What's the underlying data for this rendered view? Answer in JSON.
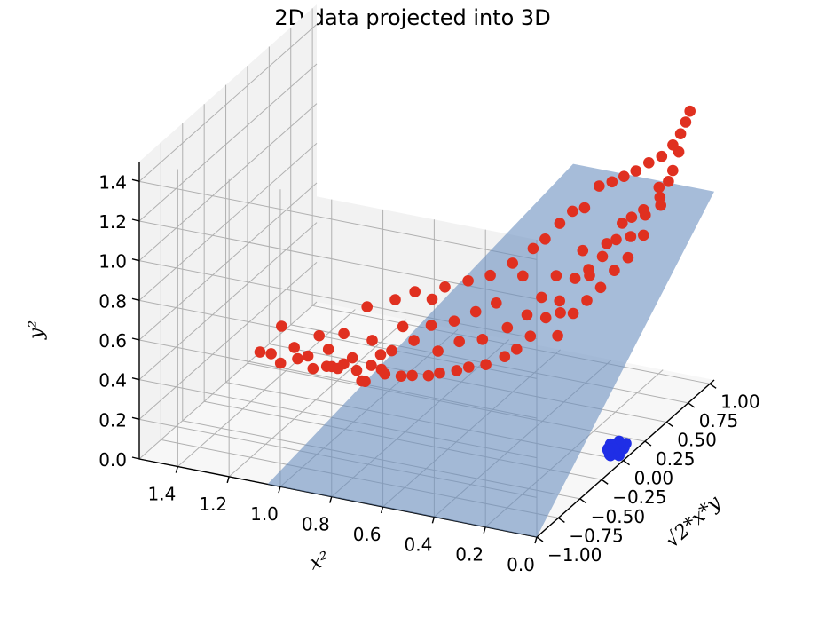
{
  "chart_data": {
    "type": "scatter",
    "dimensions": 3,
    "title": "2D data projected into 3D",
    "xlabel": "$x^2$",
    "ylabel": "$\\sqrt{2}*x*y$",
    "zlabel": "$y^2$",
    "xlabel_display": "x²",
    "ylabel_display": "√2*x*y",
    "zlabel_display": "y²",
    "xlim": [
      0.0,
      1.55
    ],
    "ylim": [
      -1.0,
      1.05
    ],
    "zlim": [
      0.0,
      1.5
    ],
    "x_ticks": [
      "0.0",
      "0.2",
      "0.4",
      "0.6",
      "0.8",
      "1.0",
      "1.2",
      "1.4"
    ],
    "y_ticks": [
      "−1.00",
      "−0.75",
      "−0.50",
      "−0.25",
      "0.00",
      "0.25",
      "0.50",
      "0.75",
      "1.00"
    ],
    "z_ticks": [
      "0.0",
      "0.2",
      "0.4",
      "0.6",
      "0.8",
      "1.0",
      "1.2",
      "1.4"
    ],
    "grid": true,
    "colors": {
      "outer": "#e03020",
      "inner": "#1f2ee6",
      "plane": "#6a8fbf"
    },
    "series": [
      {
        "color": "#e03020",
        "points": [
          [
            1.4,
            -0.05,
            0.21
          ],
          [
            1.38,
            0.02,
            0.18
          ],
          [
            1.33,
            -0.02,
            0.16
          ],
          [
            1.3,
            0.05,
            0.22
          ],
          [
            1.27,
            0.0,
            0.19
          ],
          [
            1.24,
            0.03,
            0.2
          ],
          [
            1.2,
            -0.03,
            0.17
          ],
          [
            1.17,
            0.06,
            0.24
          ],
          [
            1.14,
            0.01,
            0.18
          ],
          [
            1.1,
            -0.04,
            0.2
          ],
          [
            1.07,
            0.04,
            0.23
          ],
          [
            1.04,
            0.0,
            0.19
          ],
          [
            1.0,
            -0.06,
            0.17
          ],
          [
            0.97,
            0.07,
            0.26
          ],
          [
            0.95,
            0.02,
            0.21
          ],
          [
            1.36,
            0.08,
            0.3
          ],
          [
            1.22,
            0.1,
            0.28
          ],
          [
            1.12,
            0.09,
            0.32
          ],
          [
            1.02,
            0.12,
            0.3
          ],
          [
            0.98,
            -0.08,
            0.18
          ],
          [
            1.05,
            0.15,
            0.45
          ],
          [
            0.95,
            0.18,
            0.5
          ],
          [
            0.9,
            0.12,
            0.4
          ],
          [
            0.88,
            0.2,
            0.55
          ],
          [
            0.92,
            0.05,
            0.3
          ],
          [
            0.85,
            0.1,
            0.35
          ],
          [
            0.82,
            0.22,
            0.52
          ],
          [
            0.8,
            0.15,
            0.42
          ],
          [
            0.78,
            0.25,
            0.58
          ],
          [
            0.75,
            0.08,
            0.33
          ],
          [
            0.72,
            0.18,
            0.45
          ],
          [
            0.7,
            0.28,
            0.62
          ],
          [
            0.68,
            0.12,
            0.38
          ],
          [
            0.65,
            0.22,
            0.5
          ],
          [
            0.62,
            0.3,
            0.66
          ],
          [
            0.6,
            0.15,
            0.4
          ],
          [
            0.58,
            0.25,
            0.55
          ],
          [
            0.55,
            0.35,
            0.72
          ],
          [
            0.52,
            0.2,
            0.46
          ],
          [
            0.5,
            0.32,
            0.68
          ],
          [
            0.48,
            0.38,
            0.8
          ],
          [
            0.46,
            0.25,
            0.52
          ],
          [
            0.44,
            0.4,
            0.85
          ],
          [
            0.42,
            0.3,
            0.6
          ],
          [
            0.4,
            0.45,
            0.92
          ],
          [
            0.38,
            0.35,
            0.7
          ],
          [
            0.36,
            0.48,
            0.98
          ],
          [
            0.34,
            0.28,
            0.55
          ],
          [
            0.32,
            0.5,
            1.0
          ],
          [
            0.3,
            0.42,
            0.82
          ],
          [
            0.28,
            0.55,
            1.1
          ],
          [
            0.26,
            0.38,
            0.72
          ],
          [
            0.24,
            0.58,
            1.12
          ],
          [
            0.22,
            0.46,
            0.86
          ],
          [
            0.2,
            0.6,
            1.15
          ],
          [
            0.18,
            0.52,
            0.95
          ],
          [
            0.16,
            0.62,
            1.18
          ],
          [
            0.14,
            0.5,
            0.9
          ],
          [
            0.12,
            0.65,
            1.22
          ],
          [
            0.1,
            0.55,
            1.0
          ],
          [
            0.08,
            0.68,
            1.25
          ],
          [
            0.06,
            0.6,
            1.08
          ],
          [
            0.05,
            0.72,
            1.3
          ],
          [
            0.04,
            0.64,
            1.15
          ],
          [
            0.03,
            0.75,
            1.35
          ],
          [
            0.02,
            0.7,
            1.28
          ],
          [
            0.02,
            0.78,
            1.4
          ],
          [
            0.01,
            0.8,
            1.45
          ],
          [
            0.03,
            0.66,
            1.2
          ],
          [
            0.05,
            0.58,
            1.05
          ],
          [
            0.07,
            0.62,
            1.12
          ],
          [
            0.09,
            0.5,
            0.92
          ],
          [
            0.11,
            0.56,
            1.02
          ],
          [
            0.13,
            0.44,
            0.82
          ],
          [
            0.15,
            0.54,
            0.98
          ],
          [
            0.17,
            0.4,
            0.76
          ],
          [
            0.19,
            0.48,
            0.88
          ],
          [
            0.21,
            0.36,
            0.68
          ],
          [
            0.23,
            0.44,
            0.8
          ],
          [
            0.25,
            0.32,
            0.62
          ],
          [
            0.27,
            0.4,
            0.74
          ],
          [
            0.29,
            0.28,
            0.56
          ],
          [
            0.31,
            0.36,
            0.7
          ],
          [
            0.33,
            0.22,
            0.46
          ],
          [
            0.35,
            0.3,
            0.6
          ],
          [
            0.39,
            0.26,
            0.52
          ],
          [
            0.43,
            0.2,
            0.44
          ],
          [
            0.47,
            0.16,
            0.38
          ],
          [
            0.51,
            0.14,
            0.34
          ],
          [
            0.57,
            0.1,
            0.3
          ],
          [
            0.63,
            0.08,
            0.28
          ],
          [
            0.67,
            0.06,
            0.26
          ],
          [
            0.73,
            0.04,
            0.24
          ],
          [
            0.77,
            0.03,
            0.22
          ],
          [
            0.83,
            0.02,
            0.21
          ],
          [
            0.87,
            0.01,
            0.2
          ],
          [
            0.93,
            0.0,
            0.2
          ],
          [
            0.99,
            0.02,
            0.22
          ],
          [
            1.09,
            0.0,
            0.21
          ],
          [
            1.15,
            -0.02,
            0.19
          ]
        ]
      },
      {
        "color": "#1f2ee6",
        "points": [
          [
            0.03,
            0.05,
            0.04
          ],
          [
            0.02,
            -0.04,
            0.05
          ],
          [
            0.04,
            0.02,
            0.03
          ],
          [
            0.01,
            0.06,
            0.06
          ],
          [
            0.05,
            -0.01,
            0.02
          ],
          [
            0.02,
            0.03,
            0.07
          ],
          [
            0.03,
            -0.06,
            0.04
          ],
          [
            0.06,
            0.04,
            0.05
          ],
          [
            0.01,
            -0.02,
            0.03
          ],
          [
            0.04,
            0.07,
            0.06
          ],
          [
            0.02,
            0.0,
            0.08
          ],
          [
            0.05,
            -0.03,
            0.05
          ],
          [
            0.03,
            0.01,
            0.02
          ],
          [
            0.06,
            0.02,
            0.04
          ],
          [
            0.01,
            0.04,
            0.05
          ],
          [
            0.04,
            -0.05,
            0.06
          ],
          [
            0.02,
            0.06,
            0.03
          ],
          [
            0.05,
            0.0,
            0.07
          ],
          [
            0.03,
            -0.02,
            0.06
          ],
          [
            0.07,
            0.03,
            0.03
          ]
        ]
      }
    ],
    "surface": {
      "type": "plane",
      "corners": [
        [
          1.05,
          -1.0,
          0.0
        ],
        [
          0.0,
          -1.0,
          0.0
        ],
        [
          0.0,
          1.05,
          0.95
        ],
        [
          0.55,
          1.05,
          0.95
        ]
      ]
    }
  }
}
